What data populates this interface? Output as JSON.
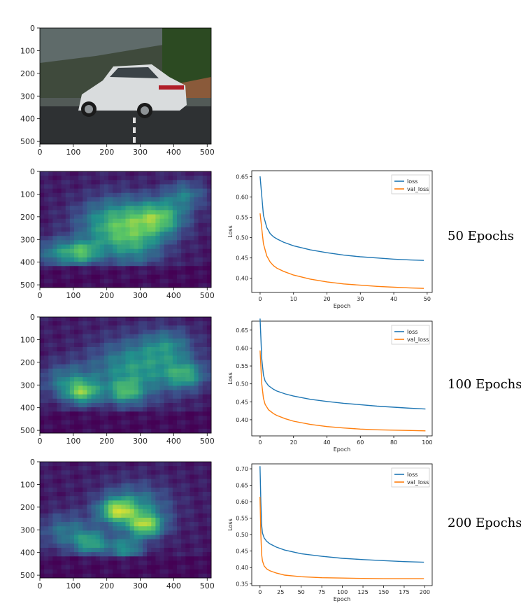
{
  "image_panels": [
    {
      "kind": "photo",
      "x_ticks": [
        "0",
        "100",
        "200",
        "300",
        "400",
        "500"
      ],
      "y_ticks": [
        "0",
        "100",
        "200",
        "300",
        "400",
        "500"
      ]
    },
    {
      "kind": "heatmap",
      "x_ticks": [
        "0",
        "100",
        "200",
        "300",
        "400",
        "500"
      ],
      "y_ticks": [
        "0",
        "100",
        "200",
        "300",
        "400",
        "500"
      ]
    },
    {
      "kind": "heatmap",
      "x_ticks": [
        "0",
        "100",
        "200",
        "300",
        "400",
        "500"
      ],
      "y_ticks": [
        "0",
        "100",
        "200",
        "300",
        "400",
        "500"
      ]
    },
    {
      "kind": "heatmap",
      "x_ticks": [
        "0",
        "100",
        "200",
        "300",
        "400",
        "500"
      ],
      "y_ticks": [
        "0",
        "100",
        "200",
        "300",
        "400",
        "500"
      ]
    }
  ],
  "row_labels": [
    "50 Epochs",
    "100 Epochs",
    "200 Epochs"
  ],
  "colors": {
    "loss": "#1f77b4",
    "val_loss": "#ff7f0e",
    "heat_low": "#440154",
    "heat_mid": "#21918c",
    "heat_high": "#bddf26"
  },
  "chart_data": [
    {
      "type": "line",
      "xlabel": "Epoch",
      "ylabel": "Loss",
      "xlim": [
        -2.5,
        51.5
      ],
      "ylim": [
        0.365,
        0.665
      ],
      "x_ticks": [
        0,
        10,
        20,
        30,
        40,
        50
      ],
      "y_ticks": [
        0.4,
        0.45,
        0.5,
        0.55,
        0.6,
        0.65
      ],
      "legend": "top-right",
      "grid": false,
      "series": [
        {
          "name": "loss",
          "x": [
            0,
            1,
            2,
            3,
            4,
            5,
            7,
            10,
            15,
            20,
            25,
            30,
            35,
            40,
            45,
            49
          ],
          "values": [
            0.651,
            0.555,
            0.525,
            0.51,
            0.502,
            0.497,
            0.489,
            0.48,
            0.47,
            0.463,
            0.457,
            0.453,
            0.45,
            0.447,
            0.445,
            0.444
          ]
        },
        {
          "name": "val_loss",
          "x": [
            0,
            1,
            2,
            3,
            4,
            5,
            7,
            10,
            15,
            20,
            25,
            30,
            35,
            40,
            45,
            49
          ],
          "values": [
            0.56,
            0.485,
            0.455,
            0.44,
            0.431,
            0.425,
            0.417,
            0.408,
            0.398,
            0.391,
            0.386,
            0.383,
            0.38,
            0.378,
            0.376,
            0.375
          ]
        }
      ]
    },
    {
      "type": "line",
      "xlabel": "Epoch",
      "ylabel": "Loss",
      "xlim": [
        -5,
        103
      ],
      "ylim": [
        0.355,
        0.675
      ],
      "x_ticks": [
        0,
        20,
        40,
        60,
        80,
        100
      ],
      "y_ticks": [
        0.4,
        0.45,
        0.5,
        0.55,
        0.6,
        0.65
      ],
      "legend": "top-right",
      "grid": false,
      "series": [
        {
          "name": "loss",
          "x": [
            0,
            1,
            2,
            3,
            5,
            8,
            10,
            15,
            20,
            30,
            40,
            50,
            60,
            70,
            80,
            90,
            99
          ],
          "values": [
            0.682,
            0.57,
            0.525,
            0.508,
            0.495,
            0.485,
            0.48,
            0.472,
            0.466,
            0.457,
            0.451,
            0.446,
            0.442,
            0.438,
            0.435,
            0.432,
            0.43
          ]
        },
        {
          "name": "val_loss",
          "x": [
            0,
            1,
            2,
            3,
            5,
            8,
            10,
            15,
            20,
            30,
            40,
            50,
            60,
            70,
            80,
            90,
            99
          ],
          "values": [
            0.593,
            0.5,
            0.46,
            0.443,
            0.428,
            0.417,
            0.412,
            0.403,
            0.396,
            0.387,
            0.381,
            0.377,
            0.374,
            0.372,
            0.371,
            0.37,
            0.369
          ]
        }
      ]
    },
    {
      "type": "line",
      "xlabel": "Epoch",
      "ylabel": "Loss",
      "xlim": [
        -10,
        209
      ],
      "ylim": [
        0.345,
        0.715
      ],
      "x_ticks": [
        0,
        25,
        50,
        75,
        100,
        125,
        150,
        175,
        200
      ],
      "y_ticks": [
        0.35,
        0.4,
        0.45,
        0.5,
        0.55,
        0.6,
        0.65,
        0.7
      ],
      "legend": "top-right",
      "grid": false,
      "series": [
        {
          "name": "loss",
          "x": [
            0,
            1,
            2,
            3,
            5,
            8,
            12,
            20,
            30,
            50,
            75,
            100,
            125,
            150,
            175,
            199
          ],
          "values": [
            0.708,
            0.6,
            0.53,
            0.505,
            0.49,
            0.48,
            0.472,
            0.462,
            0.453,
            0.442,
            0.434,
            0.428,
            0.424,
            0.421,
            0.418,
            0.416
          ]
        },
        {
          "name": "val_loss",
          "x": [
            0,
            1,
            2,
            3,
            5,
            8,
            12,
            20,
            30,
            50,
            75,
            100,
            125,
            150,
            175,
            199
          ],
          "values": [
            0.615,
            0.5,
            0.44,
            0.42,
            0.405,
            0.396,
            0.39,
            0.383,
            0.377,
            0.372,
            0.369,
            0.368,
            0.367,
            0.366,
            0.366,
            0.366
          ]
        }
      ]
    }
  ]
}
